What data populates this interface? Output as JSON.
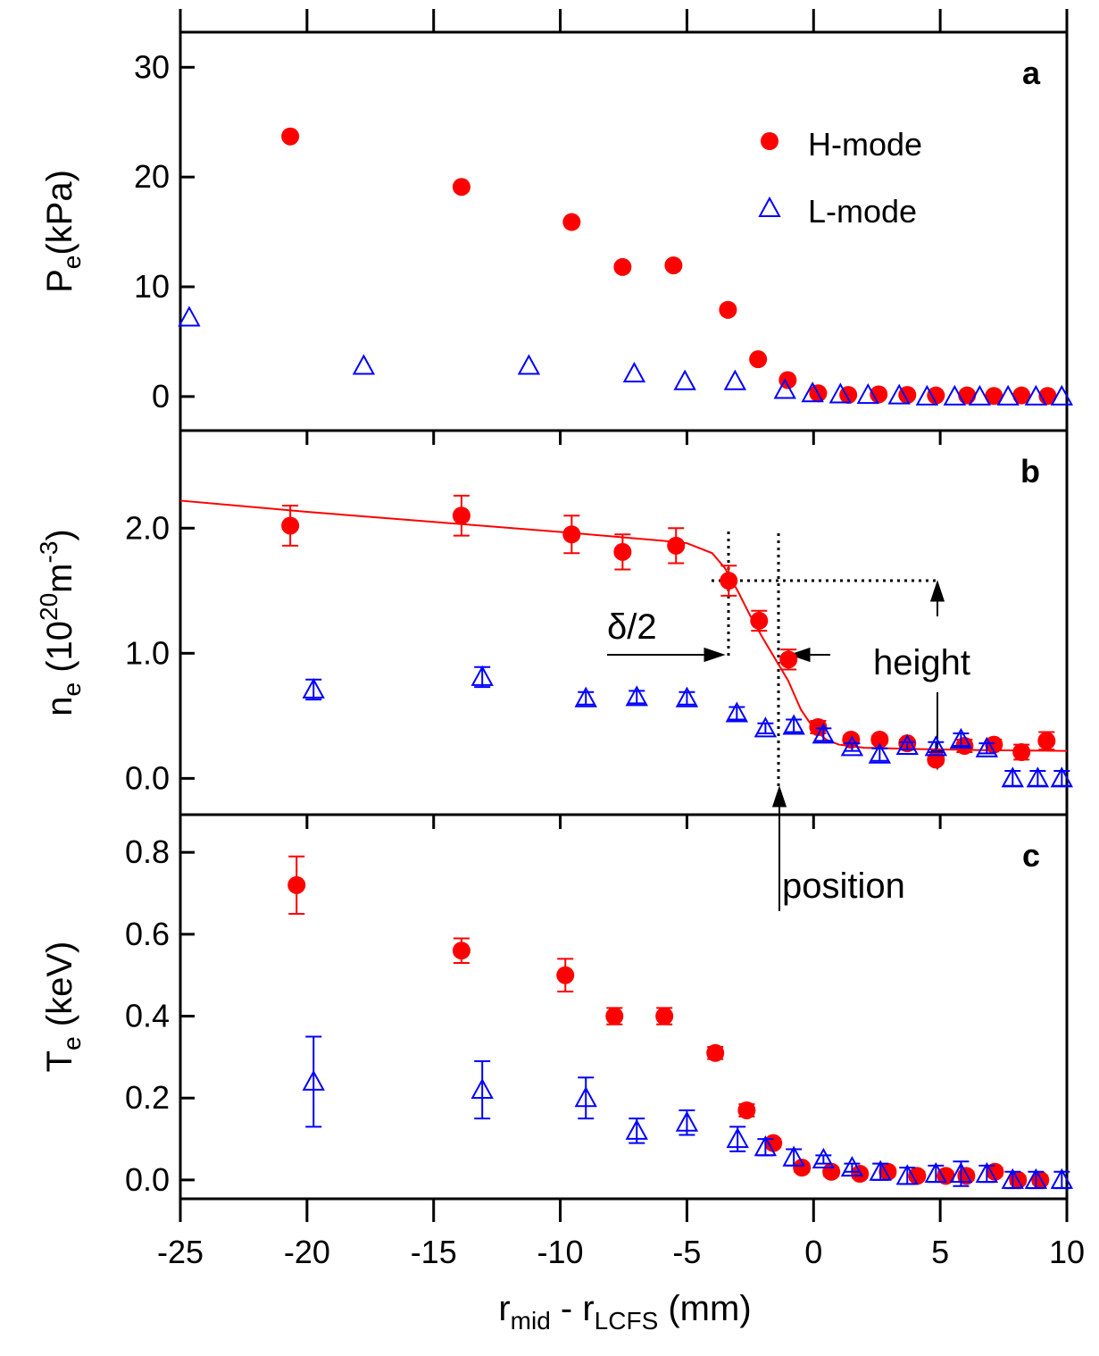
{
  "chart_data": [
    {
      "type": "scatter",
      "label": "a",
      "ylabel": [
        "P",
        "e",
        "(kPa)"
      ],
      "ylim": [
        -3.1,
        33.2
      ],
      "yticks": [
        0,
        10,
        20,
        30
      ],
      "legend": "upper right",
      "series": [
        {
          "name": "H-mode",
          "color": "#ff0000",
          "marker": "circle",
          "x": [
            -20.66,
            -13.9,
            -9.55,
            -7.54,
            -5.53,
            -3.38,
            -2.19,
            -1.02,
            0.18,
            1.37,
            2.57,
            3.7,
            4.83,
            6.06,
            7.12,
            8.21,
            9.24
          ],
          "values": [
            23.7,
            19.1,
            15.9,
            11.8,
            11.95,
            7.9,
            3.4,
            1.5,
            0.3,
            0.15,
            0.2,
            0.15,
            0.1,
            0.1,
            0.05,
            0.1,
            0.05
          ]
        },
        {
          "name": "L-mode",
          "color": "#0000ff",
          "marker": "triangle",
          "x": [
            -24.65,
            -17.76,
            -11.24,
            -7.08,
            -5.08,
            -3.1,
            -1.13,
            -0.04,
            1.06,
            2.15,
            3.38,
            4.48,
            5.57,
            6.56,
            7.68,
            8.78,
            9.8
          ],
          "values": [
            7.2,
            2.8,
            2.8,
            2.1,
            1.4,
            1.4,
            0.6,
            0.3,
            0.2,
            0.15,
            0.1,
            0,
            0,
            0,
            0,
            0,
            0
          ]
        }
      ]
    },
    {
      "type": "scatter",
      "label": "b",
      "ylabel": [
        "n",
        "e",
        " (10",
        "20",
        "m",
        "-3",
        ")"
      ],
      "ylim": [
        -0.29,
        2.78
      ],
      "yticks": [
        {
          "value": 0,
          "label": "0.0"
        },
        {
          "value": 1,
          "label": "1.0"
        },
        {
          "value": 2,
          "label": "2.0"
        }
      ],
      "annotations": [
        "δ/2",
        "height",
        "position"
      ],
      "fit": {
        "color": "#ff0000",
        "x": [
          -25,
          -20,
          -15,
          -10,
          -6,
          -5,
          -4,
          -3.5,
          -3,
          -2.5,
          -2,
          -1.5,
          -1,
          -0.5,
          0,
          0.5,
          1,
          2,
          4,
          7,
          10
        ],
        "values": [
          2.22,
          2.13,
          2.05,
          1.97,
          1.9,
          1.88,
          1.8,
          1.68,
          1.5,
          1.3,
          1.12,
          0.95,
          0.78,
          0.55,
          0.4,
          0.31,
          0.27,
          0.245,
          0.235,
          0.225,
          0.22
        ]
      },
      "series": [
        {
          "name": "H-mode",
          "color": "#ff0000",
          "marker": "circle",
          "x": [
            -20.66,
            -13.9,
            -9.55,
            -7.54,
            -5.43,
            -3.35,
            -2.15,
            -0.99,
            0.18,
            1.48,
            2.61,
            3.7,
            4.83,
            5.96,
            7.12,
            8.21,
            9.2
          ],
          "values": [
            2.02,
            2.1,
            1.95,
            1.81,
            1.86,
            1.58,
            1.26,
            0.95,
            0.41,
            0.31,
            0.31,
            0.28,
            0.15,
            0.26,
            0.27,
            0.21,
            0.3
          ],
          "errors": [
            0.16,
            0.16,
            0.15,
            0.14,
            0.14,
            0.12,
            0.08,
            0.08,
            0.05,
            0.03,
            0.03,
            0.03,
            0.03,
            0.05,
            0.04,
            0.06,
            0.07
          ]
        },
        {
          "name": "L-mode",
          "color": "#0000ff",
          "marker": "triangle",
          "x": [
            -19.74,
            -13.08,
            -8.99,
            -6.98,
            -5.0,
            -3.03,
            -1.9,
            -0.78,
            0.39,
            1.52,
            2.61,
            3.7,
            4.83,
            5.82,
            6.84,
            7.86,
            8.85,
            9.8
          ],
          "values": [
            0.71,
            0.81,
            0.64,
            0.65,
            0.64,
            0.52,
            0.4,
            0.42,
            0.35,
            0.25,
            0.19,
            0.26,
            0.25,
            0.31,
            0.24,
            0,
            0,
            0
          ],
          "errors": [
            0.08,
            0.08,
            0.05,
            0.05,
            0.05,
            0.05,
            0.04,
            0.05,
            0.05,
            0.03,
            0.05,
            0.03,
            0.04,
            0.05,
            0.04,
            0.06,
            0.06,
            0.06
          ]
        }
      ]
    },
    {
      "type": "scatter",
      "label": "c",
      "ylabel": [
        "T",
        "e",
        " (keV)"
      ],
      "xlabel": [
        "r",
        "mid",
        " - r",
        "LCFS",
        " (mm)"
      ],
      "xlim": [
        -25,
        10
      ],
      "xticks": [
        -25,
        -20,
        -15,
        -10,
        -5,
        0,
        5,
        10
      ],
      "ylim": [
        -0.046,
        0.892
      ],
      "yticks": [
        {
          "value": 0,
          "label": "0.0"
        },
        0.2,
        0.4,
        0.6,
        0.8
      ],
      "series": [
        {
          "name": "H-mode",
          "color": "#ff0000",
          "marker": "circle",
          "x": [
            -20.41,
            -13.9,
            -9.8,
            -7.86,
            -5.89,
            -3.88,
            -2.64,
            -1.59,
            -0.46,
            0.7,
            1.83,
            2.93,
            4.09,
            5.22,
            6.03,
            7.16,
            8.07,
            8.95
          ],
          "values": [
            0.72,
            0.56,
            0.5,
            0.4,
            0.4,
            0.31,
            0.17,
            0.09,
            0.03,
            0.02,
            0.015,
            0.02,
            0.01,
            0.01,
            0.01,
            0.02,
            0,
            0
          ],
          "errors": [
            0.07,
            0.03,
            0.04,
            0.02,
            0.02,
            0.015,
            0.015,
            0.01,
            0.01,
            0.01,
            0.01,
            0.01,
            0.01,
            0.01,
            0.01,
            0.01,
            0.01,
            0.01
          ]
        },
        {
          "name": "L-mode",
          "color": "#0000ff",
          "marker": "triangle",
          "x": [
            -19.74,
            -13.08,
            -8.99,
            -6.98,
            -5.0,
            -3.0,
            -1.9,
            -0.78,
            0.39,
            1.52,
            2.64,
            3.7,
            4.83,
            5.82,
            6.84,
            7.86,
            8.78,
            9.8
          ],
          "values": [
            0.24,
            0.22,
            0.2,
            0.12,
            0.14,
            0.1,
            0.08,
            0.055,
            0.05,
            0.03,
            0.02,
            0.01,
            0.015,
            0.015,
            0.015,
            0,
            0,
            0
          ],
          "errors": [
            0.11,
            0.07,
            0.05,
            0.03,
            0.03,
            0.03,
            0.02,
            0.02,
            0.01,
            0.01,
            0.02,
            0.02,
            0.02,
            0.03,
            0.02,
            0.02,
            0.02,
            0.02
          ]
        }
      ]
    }
  ]
}
